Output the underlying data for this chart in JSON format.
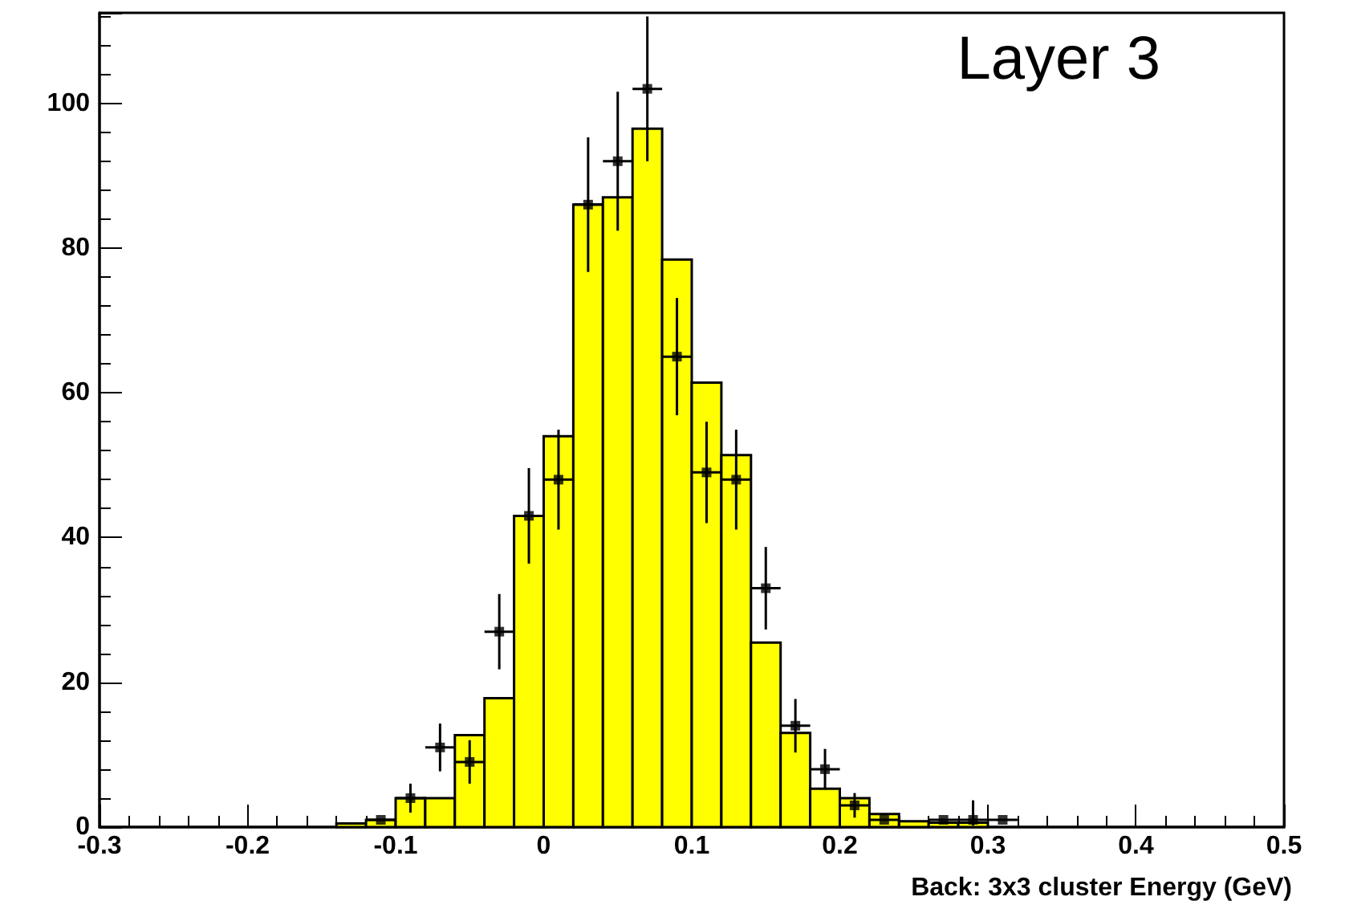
{
  "chart_data": {
    "type": "histogram",
    "xlabel": "Back: 3x3 cluster Energy (GeV)",
    "annotations": [
      "Layer 3"
    ],
    "xlim": [
      -0.3,
      0.5
    ],
    "xticks": [
      -0.3,
      -0.2,
      -0.1,
      0,
      0.1,
      0.2,
      0.3,
      0.4,
      0.5
    ],
    "ylim": [
      0,
      112.5
    ],
    "yticks": [
      0,
      20,
      40,
      60,
      80,
      100
    ],
    "grid": false,
    "series": [
      {
        "color": "#ffff00",
        "bins": [
          -0.14,
          -0.12,
          -0.1,
          -0.08,
          -0.06,
          -0.04,
          -0.02,
          0,
          0.02,
          0.04,
          0.06,
          0.08,
          0.1,
          0.12,
          0.14,
          0.16,
          0.18,
          0.2,
          0.22,
          0.24,
          0.26,
          0.28,
          0.3
        ],
        "values": [
          0.5,
          1,
          4,
          4,
          12.7,
          17.8,
          43,
          54,
          86,
          87,
          96.5,
          78.4,
          61.4,
          51.4,
          25.5,
          13,
          5.3,
          4,
          1.8,
          0.8,
          0.6,
          0.6
        ]
      },
      {
        "type": "scatter",
        "color": "#000000",
        "marker": "square",
        "x": [
          -0.11,
          -0.09,
          -0.07,
          -0.05,
          -0.03,
          -0.01,
          0.01,
          0.03,
          0.05,
          0.07,
          0.09,
          0.11,
          0.13,
          0.15,
          0.17,
          0.19,
          0.21,
          0.23,
          0.27,
          0.29,
          0.31
        ],
        "values": [
          1,
          4,
          11,
          9,
          27,
          43,
          48,
          86,
          92,
          102,
          65,
          49,
          48,
          33,
          14,
          8,
          3,
          1,
          1,
          1,
          1
        ],
        "errors": [
          null,
          2,
          3.3,
          3,
          5.2,
          6.6,
          6.9,
          9.3,
          9.6,
          10,
          8.1,
          7,
          6.9,
          5.7,
          3.7,
          2.8,
          1.7,
          null,
          null,
          [
            0.2,
            3.7
          ],
          null
        ],
        "xerrors": [
          0.01,
          0.01,
          0.01,
          0.01,
          0.01,
          0.01,
          0.01,
          0.01,
          0.01,
          0.01,
          0.01,
          0.01,
          0.01,
          0.01,
          0.01,
          0.01,
          0.01,
          0.01,
          0.01,
          0.01,
          0.01
        ]
      }
    ]
  }
}
